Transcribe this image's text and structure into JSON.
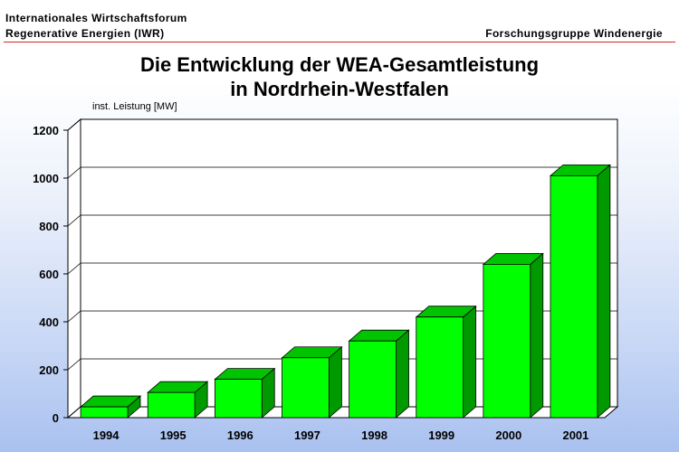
{
  "header": {
    "org_line1": "Internationales Wirtschaftsforum",
    "org_line2": "Regenerative Energien (IWR)",
    "group": "Forschungsgruppe Windenergie"
  },
  "chart_data": {
    "type": "bar",
    "title": "Die Entwicklung der WEA-Gesamtleistung",
    "subtitle": "in Nordrhein-Westfalen",
    "ylabel": "inst. Leistung [MW]",
    "xlabel": "",
    "categories": [
      "1994",
      "1995",
      "1996",
      "1997",
      "1998",
      "1999",
      "2000",
      "2001"
    ],
    "values": [
      45,
      105,
      160,
      250,
      320,
      420,
      640,
      1010
    ],
    "ylim": [
      0,
      1200
    ],
    "yticks": [
      0,
      200,
      400,
      600,
      800,
      1000,
      1200
    ],
    "grid": true,
    "bar_color": "#00ff00",
    "bar_side_color": "#009900",
    "bar_top_color": "#00c400",
    "legend": "none"
  }
}
